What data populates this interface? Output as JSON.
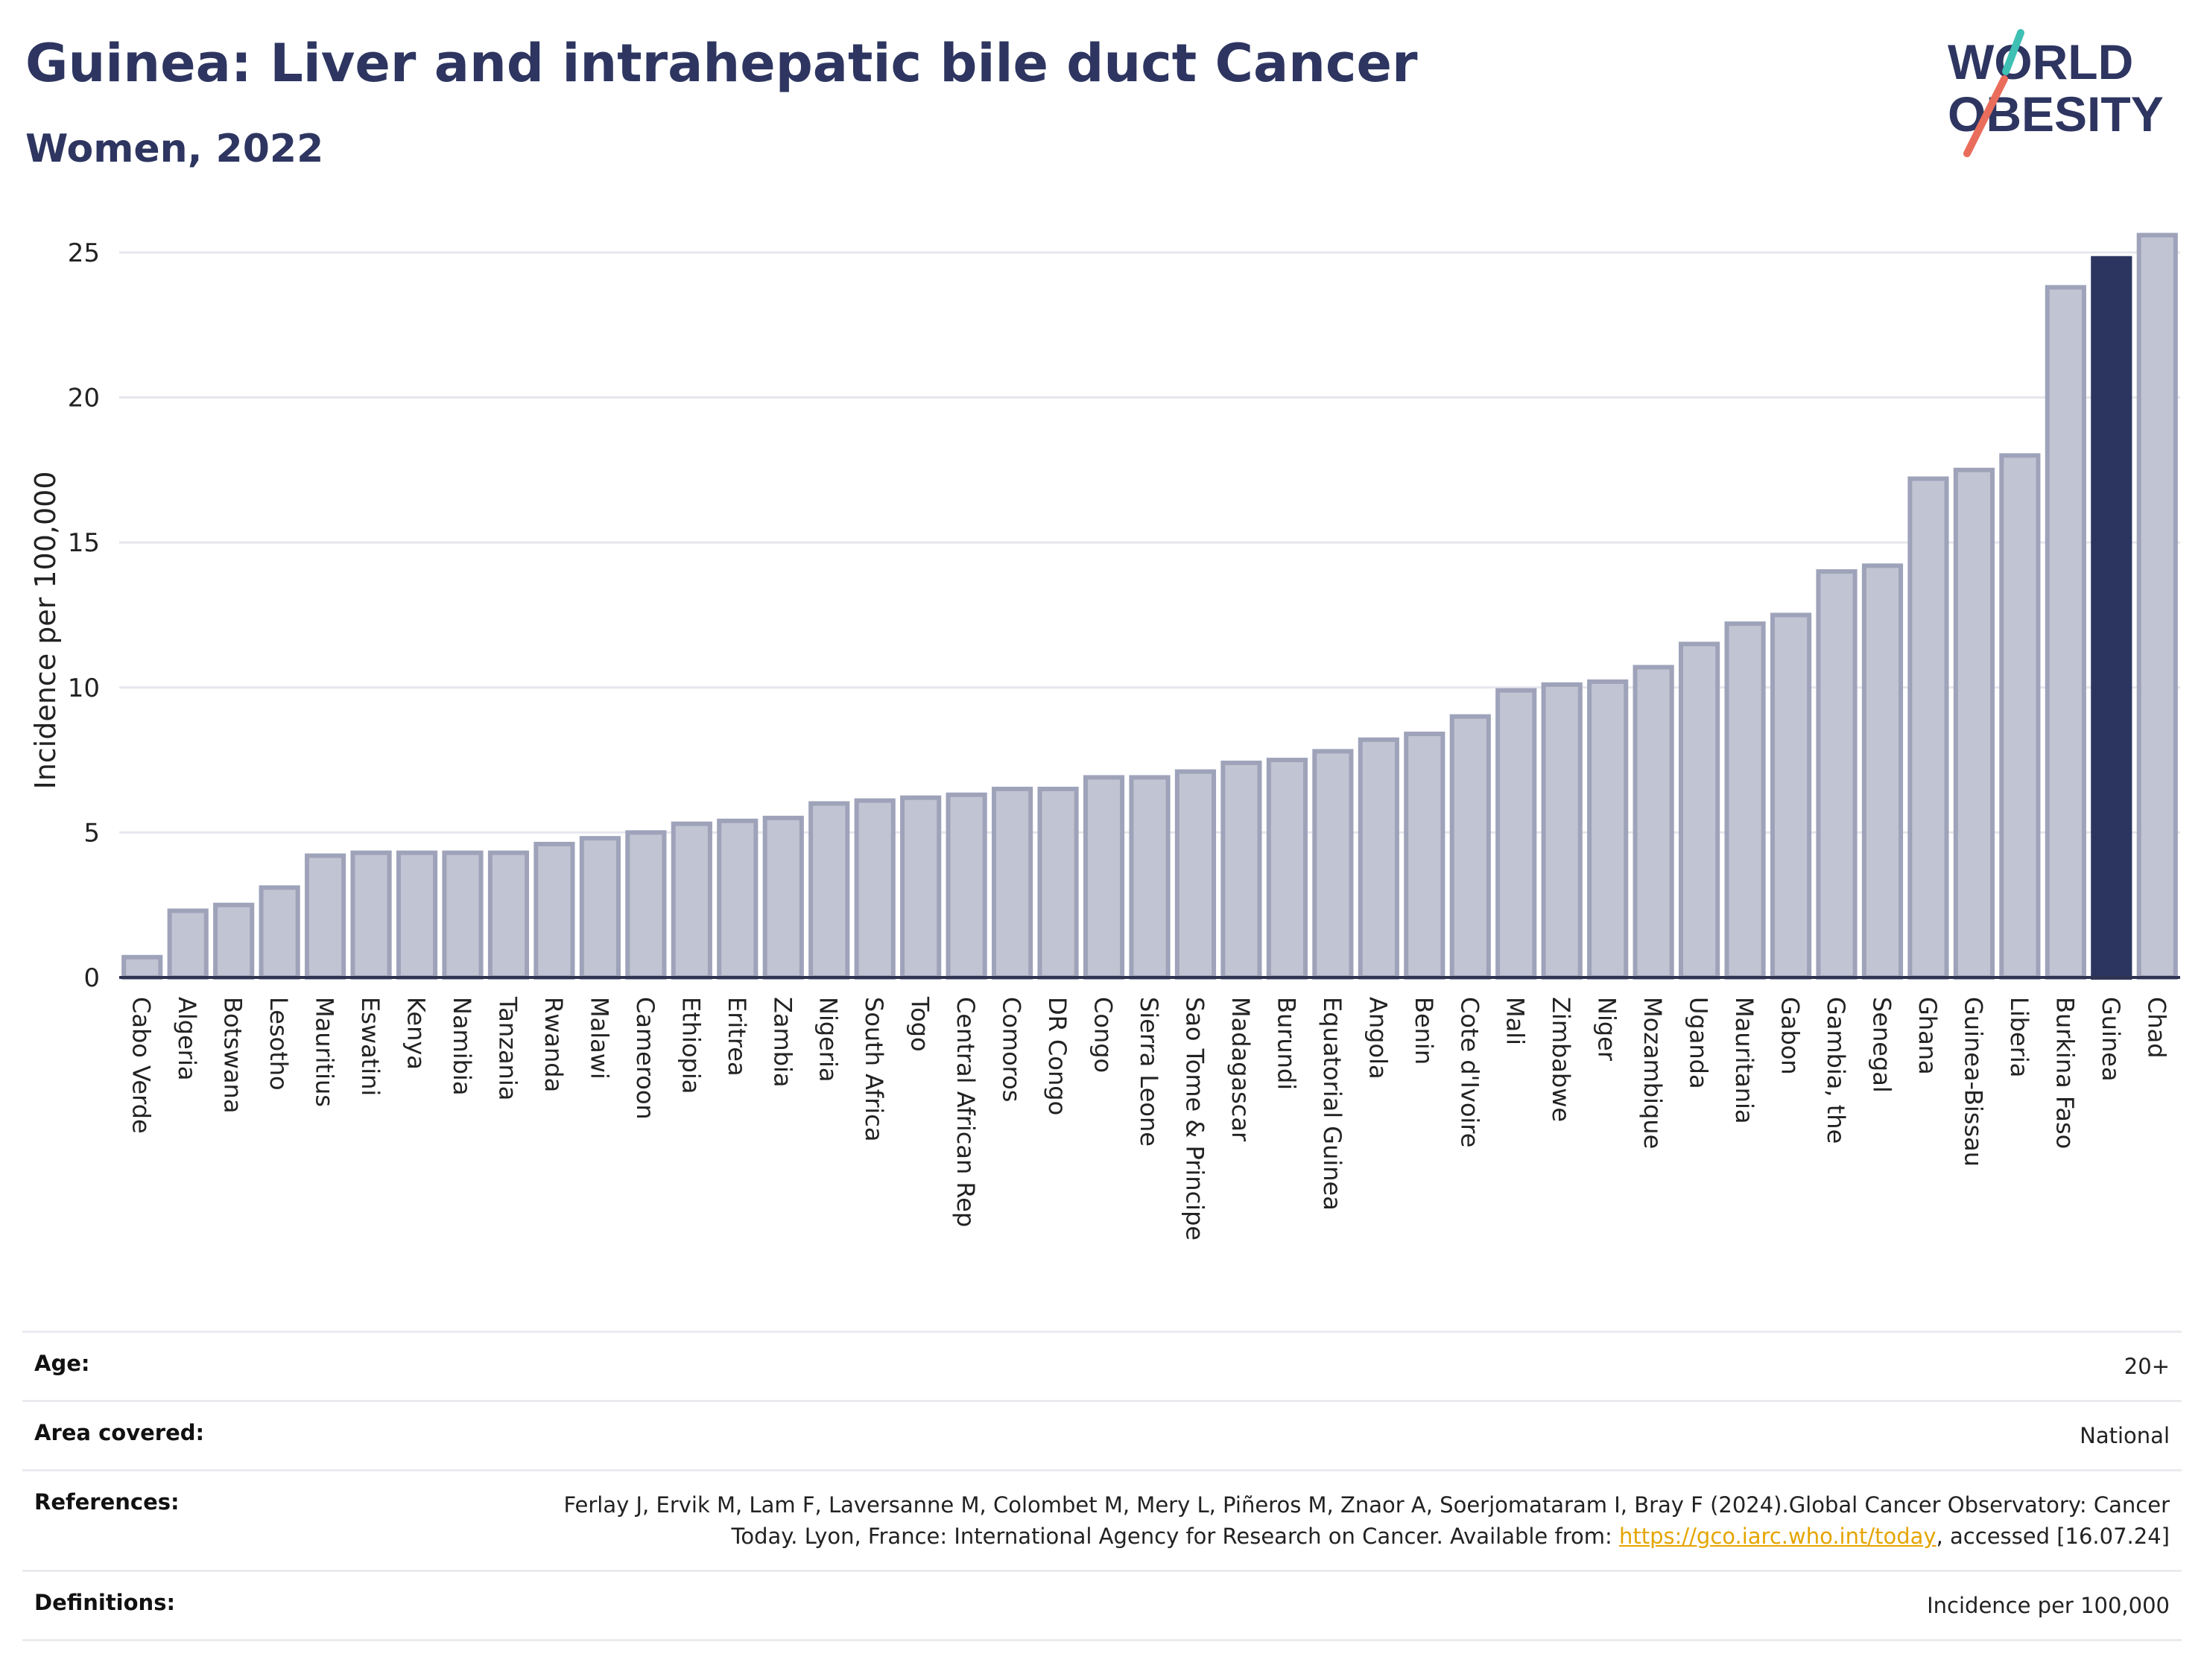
{
  "header": {
    "title": "Guinea: Liver and intrahepatic bile duct Cancer",
    "subtitle": "Women, 2022"
  },
  "logo": {
    "line1": "WORLD",
    "line2": "OBESITY"
  },
  "colors": {
    "bar": "#c1c4d2",
    "bar_border": "#9ea3ba",
    "highlight": "#2b3560",
    "title": "#2d3560"
  },
  "chart_data": {
    "type": "bar",
    "ylabel": "Incidence per 100,000",
    "ylim": [
      0,
      26
    ],
    "yticks": [
      0,
      5,
      10,
      15,
      20,
      25
    ],
    "grid": true,
    "highlight": "Guinea",
    "categories": [
      "Cabo Verde",
      "Algeria",
      "Botswana",
      "Lesotho",
      "Mauritius",
      "Eswatini",
      "Kenya",
      "Namibia",
      "Tanzania",
      "Rwanda",
      "Malawi",
      "Cameroon",
      "Ethiopia",
      "Eritrea",
      "Zambia",
      "Nigeria",
      "South Africa",
      "Togo",
      "Central African Rep",
      "Comoros",
      "DR Congo",
      "Congo",
      "Sierra Leone",
      "Sao Tome & Principe",
      "Madagascar",
      "Burundi",
      "Equatorial Guinea",
      "Angola",
      "Benin",
      "Cote d'Ivoire",
      "Mali",
      "Zimbabwe",
      "Niger",
      "Mozambique",
      "Uganda",
      "Mauritania",
      "Gabon",
      "Gambia, the",
      "Senegal",
      "Ghana",
      "Guinea-Bissau",
      "Liberia",
      "Burkina Faso",
      "Guinea",
      "Chad"
    ],
    "values": [
      0.7,
      2.3,
      2.5,
      3.1,
      4.2,
      4.3,
      4.3,
      4.3,
      4.3,
      4.6,
      4.8,
      5.0,
      5.3,
      5.4,
      5.5,
      6.0,
      6.1,
      6.2,
      6.3,
      6.5,
      6.5,
      6.9,
      6.9,
      7.1,
      7.4,
      7.5,
      7.8,
      8.2,
      8.4,
      9.0,
      9.9,
      10.1,
      10.2,
      10.7,
      11.5,
      12.2,
      12.5,
      14.0,
      14.2,
      17.2,
      17.5,
      18.0,
      23.8,
      24.8,
      25.6
    ]
  },
  "meta": {
    "age_label": "Age:",
    "age_value": "20+",
    "area_label": "Area covered:",
    "area_value": "National",
    "references_label": "References:",
    "references_text_1": "Ferlay J, Ervik M, Lam F, Laversanne M, Colombet M, Mery L, Piñeros M, Znaor A, Soerjomataram I, Bray F (2024).Global Cancer Observatory: Cancer Today. Lyon, France: International Agency for Research on Cancer. Available from: ",
    "references_link": "https://gco.iarc.who.int/today",
    "references_text_2": ", accessed [16.07.24]",
    "definitions_label": "Definitions:",
    "definitions_value": "Incidence per 100,000"
  }
}
